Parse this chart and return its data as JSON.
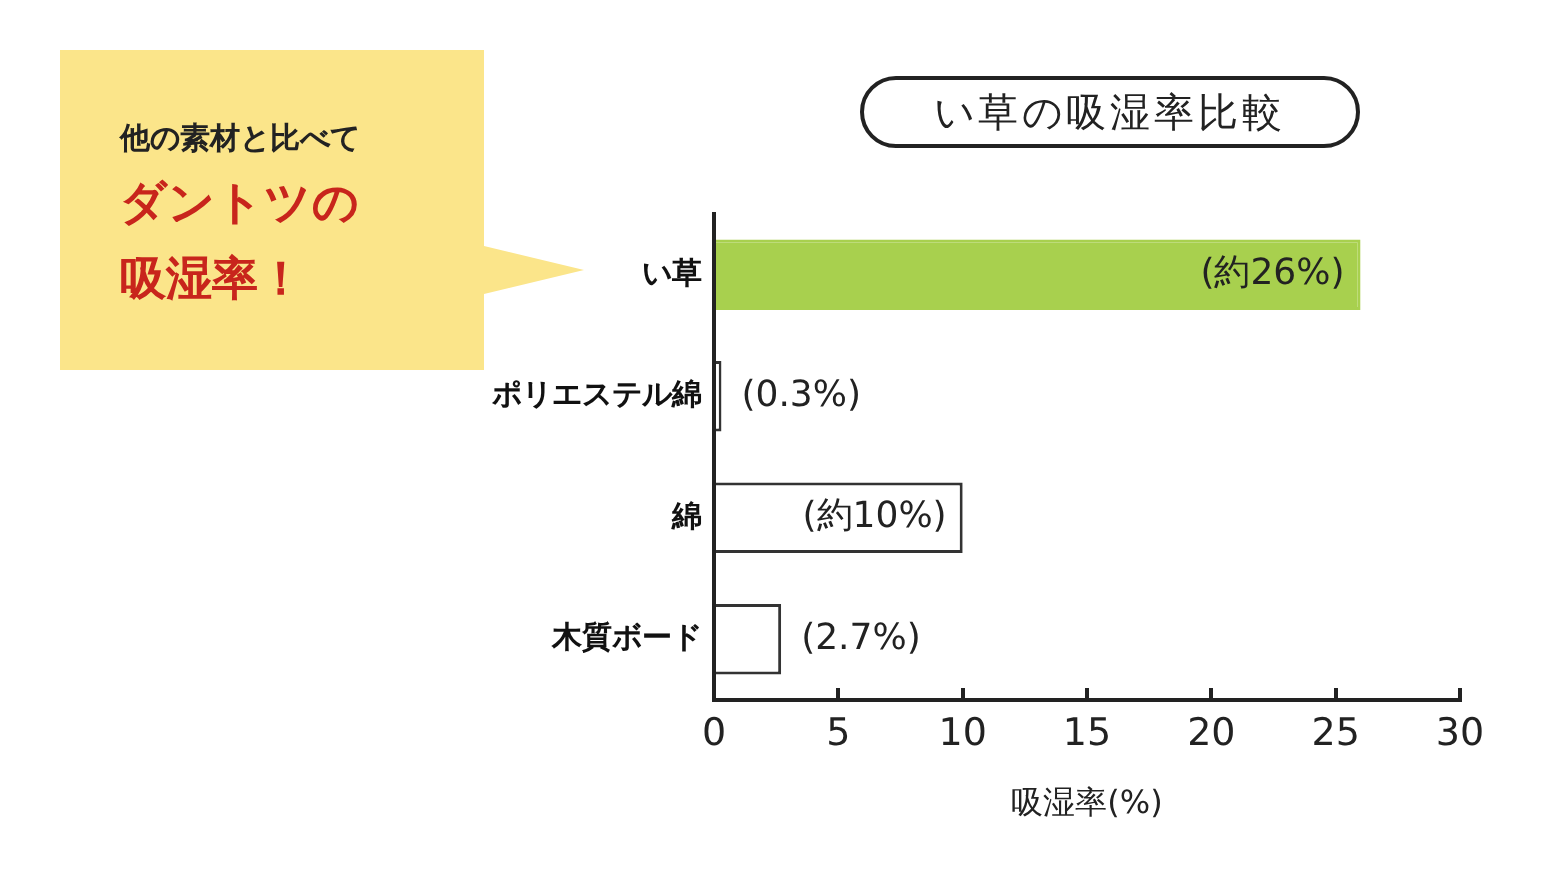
{
  "chart_data": {
    "type": "bar",
    "orientation": "horizontal",
    "title": "い草の吸湿率比較",
    "xlabel": "吸湿率(%)",
    "categories": [
      "い草",
      "ポリエステル綿",
      "綿",
      "木質ボード"
    ],
    "values": [
      26,
      0.3,
      10,
      2.7
    ],
    "colors": [
      "#a8d04e",
      "#ffffff",
      "#ffffff",
      "#ffffff"
    ],
    "value_labels": [
      "(約26%)",
      "(0.3%)",
      "(約10%)",
      "(2.7%)"
    ],
    "xlim": [
      0,
      30
    ],
    "xticks": [
      0,
      5,
      10,
      15,
      20,
      25,
      30
    ],
    "grid": false,
    "legend": false,
    "annotations": [
      "他の素材と比べて",
      "ダントツの",
      "吸湿率！"
    ]
  }
}
